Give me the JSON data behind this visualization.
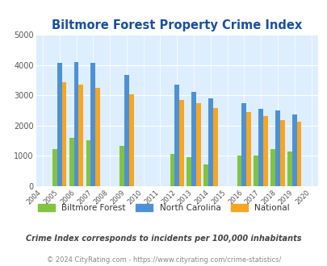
{
  "title": "Biltmore Forest Property Crime Index",
  "title_color": "#1a4fa0",
  "plot_bg_color": "#ddeeff",
  "years": [
    2005,
    2006,
    2007,
    2009,
    2012,
    2013,
    2014,
    2016,
    2017,
    2018,
    2019
  ],
  "biltmore_forest": [
    1220,
    1590,
    1510,
    1340,
    1050,
    960,
    720,
    1000,
    1020,
    1210,
    1130
  ],
  "north_carolina": [
    4080,
    4100,
    4080,
    3660,
    3360,
    3120,
    2890,
    2730,
    2540,
    2510,
    2360
  ],
  "national": [
    3440,
    3340,
    3240,
    3040,
    2850,
    2730,
    2590,
    2450,
    2310,
    2180,
    2120
  ],
  "color_biltmore": "#82c341",
  "color_nc": "#4d91d4",
  "color_national": "#f5a623",
  "ylim": [
    0,
    5000
  ],
  "yticks": [
    0,
    1000,
    2000,
    3000,
    4000,
    5000
  ],
  "xtick_years": [
    2004,
    2005,
    2006,
    2007,
    2008,
    2009,
    2010,
    2011,
    2012,
    2013,
    2014,
    2015,
    2016,
    2017,
    2018,
    2019,
    2020
  ],
  "legend_labels": [
    "Biltmore Forest",
    "North Carolina",
    "National"
  ],
  "footnote1": "Crime Index corresponds to incidents per 100,000 inhabitants",
  "footnote2": "© 2024 CityRating.com - https://www.cityrating.com/crime-statistics/",
  "footnote1_color": "#444444",
  "footnote2_color": "#888888",
  "bar_width": 0.28
}
